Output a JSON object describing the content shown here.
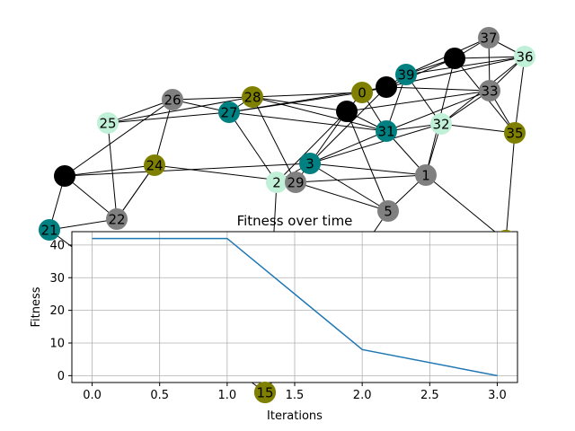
{
  "colors": {
    "olive": "#808000",
    "teal": "#008080",
    "grey": "#808080",
    "black": "#000000",
    "mint": "#c1f0d8",
    "line": "#1f77b4",
    "grid": "#b0b0b0"
  },
  "graph": {
    "nodes": [
      {
        "id": "0",
        "label": "0",
        "color": "olive"
      },
      {
        "id": "1",
        "label": "1",
        "color": "grey"
      },
      {
        "id": "2",
        "label": "2",
        "color": "mint"
      },
      {
        "id": "3",
        "label": "3",
        "color": "teal"
      },
      {
        "id": "5",
        "label": "5",
        "color": "grey"
      },
      {
        "id": "15",
        "label": "15",
        "color": "olive"
      },
      {
        "id": "21",
        "label": "21",
        "color": "teal"
      },
      {
        "id": "22",
        "label": "22",
        "color": "grey"
      },
      {
        "id": "24",
        "label": "24",
        "color": "olive"
      },
      {
        "id": "25",
        "label": "25",
        "color": "mint"
      },
      {
        "id": "26",
        "label": "26",
        "color": "grey"
      },
      {
        "id": "27",
        "label": "27",
        "color": "teal"
      },
      {
        "id": "28",
        "label": "28",
        "color": "olive"
      },
      {
        "id": "29",
        "label": "29",
        "color": "grey"
      },
      {
        "id": "31",
        "label": "31",
        "color": "teal"
      },
      {
        "id": "32",
        "label": "32",
        "color": "mint"
      },
      {
        "id": "33",
        "label": "33",
        "color": "grey"
      },
      {
        "id": "35",
        "label": "35",
        "color": "olive"
      },
      {
        "id": "36",
        "label": "36",
        "color": "mint"
      },
      {
        "id": "37",
        "label": "37",
        "color": "grey"
      },
      {
        "id": "39",
        "label": "39",
        "color": "teal"
      },
      {
        "id": "b1",
        "label": "",
        "color": "black"
      },
      {
        "id": "b2",
        "label": "",
        "color": "black"
      },
      {
        "id": "b3",
        "label": "",
        "color": "black"
      },
      {
        "id": "b4",
        "label": "",
        "color": "black"
      },
      {
        "id": "o1",
        "label": "",
        "color": "olive"
      }
    ],
    "edges": [
      [
        "25",
        "26"
      ],
      [
        "25",
        "28"
      ],
      [
        "25",
        "27"
      ],
      [
        "26",
        "28"
      ],
      [
        "26",
        "27"
      ],
      [
        "26",
        "24"
      ],
      [
        "26",
        "b1"
      ],
      [
        "28",
        "27"
      ],
      [
        "28",
        "0"
      ],
      [
        "28",
        "b2"
      ],
      [
        "28",
        "31"
      ],
      [
        "28",
        "29"
      ],
      [
        "27",
        "b3"
      ],
      [
        "27",
        "0"
      ],
      [
        "27",
        "2"
      ],
      [
        "27",
        "31"
      ],
      [
        "0",
        "b3"
      ],
      [
        "0",
        "b2"
      ],
      [
        "0",
        "31"
      ],
      [
        "b3",
        "39"
      ],
      [
        "b3",
        "b4"
      ],
      [
        "b3",
        "36"
      ],
      [
        "b3",
        "3"
      ],
      [
        "b3",
        "33"
      ],
      [
        "39",
        "b4"
      ],
      [
        "39",
        "36"
      ],
      [
        "39",
        "37"
      ],
      [
        "39",
        "31"
      ],
      [
        "39",
        "32"
      ],
      [
        "b4",
        "37"
      ],
      [
        "b4",
        "36"
      ],
      [
        "b4",
        "35"
      ],
      [
        "37",
        "36"
      ],
      [
        "37",
        "33"
      ],
      [
        "36",
        "33"
      ],
      [
        "36",
        "32"
      ],
      [
        "36",
        "35"
      ],
      [
        "33",
        "31"
      ],
      [
        "33",
        "32"
      ],
      [
        "33",
        "35"
      ],
      [
        "33",
        "b2"
      ],
      [
        "32",
        "31"
      ],
      [
        "32",
        "35"
      ],
      [
        "32",
        "1"
      ],
      [
        "32",
        "3"
      ],
      [
        "31",
        "b2"
      ],
      [
        "31",
        "3"
      ],
      [
        "31",
        "1"
      ],
      [
        "3",
        "29"
      ],
      [
        "3",
        "2"
      ],
      [
        "3",
        "5"
      ],
      [
        "3",
        "1"
      ],
      [
        "3",
        "b2"
      ],
      [
        "2",
        "29"
      ],
      [
        "2",
        "b2"
      ],
      [
        "29",
        "1"
      ],
      [
        "29",
        "5"
      ],
      [
        "29",
        "24"
      ],
      [
        "24",
        "b1"
      ],
      [
        "24",
        "22"
      ],
      [
        "24",
        "22"
      ],
      [
        "b1",
        "21"
      ],
      [
        "b1",
        "22"
      ],
      [
        "21",
        "22"
      ],
      [
        "22",
        "25"
      ],
      [
        "5",
        "1"
      ],
      [
        "5",
        "b2"
      ],
      [
        "b1",
        "3"
      ],
      [
        "35",
        "o1"
      ],
      [
        "1",
        "b4"
      ],
      [
        "21",
        "15"
      ],
      [
        "15",
        "2"
      ],
      [
        "5",
        "15"
      ],
      [
        "1",
        "o1"
      ]
    ]
  },
  "chart_data": {
    "type": "line",
    "title": "Fitness over time",
    "xlabel": "Iterations",
    "ylabel": "Fitness",
    "x": [
      0,
      1,
      2,
      3
    ],
    "series": [
      {
        "values": [
          42,
          42,
          8,
          0
        ]
      }
    ],
    "xlim": [
      -0.15,
      3.15
    ],
    "ylim": [
      -2.1,
      44.1
    ],
    "xticks": [
      0.0,
      0.5,
      1.0,
      1.5,
      2.0,
      2.5,
      3.0
    ],
    "xtick_labels": [
      "0.0",
      "0.5",
      "1.0",
      "1.5",
      "2.0",
      "2.5",
      "3.0"
    ],
    "yticks": [
      0,
      10,
      20,
      30,
      40
    ],
    "ytick_labels": [
      "0",
      "10",
      "20",
      "30",
      "40"
    ],
    "grid": true
  }
}
